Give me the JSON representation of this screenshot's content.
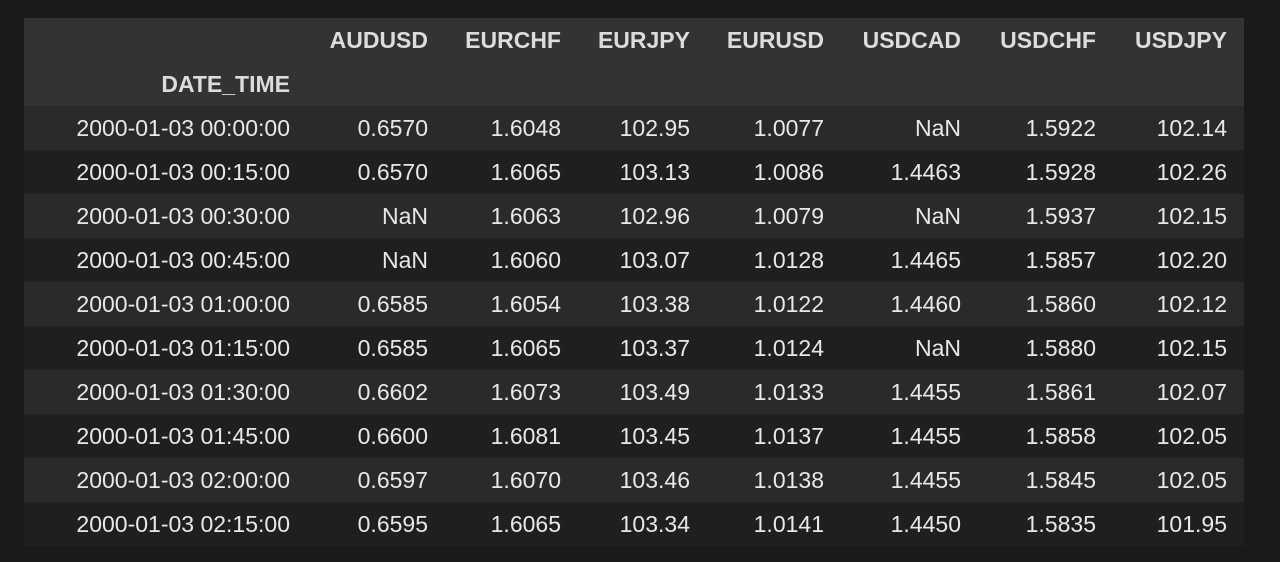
{
  "table": {
    "index_name": "DATE_TIME",
    "columns": [
      "AUDUSD",
      "EURCHF",
      "EURJPY",
      "EURUSD",
      "USDCAD",
      "USDCHF",
      "USDJPY"
    ],
    "rows": [
      {
        "index": "2000-01-03 00:00:00",
        "values": [
          "0.6570",
          "1.6048",
          "102.95",
          "1.0077",
          "NaN",
          "1.5922",
          "102.14"
        ]
      },
      {
        "index": "2000-01-03 00:15:00",
        "values": [
          "0.6570",
          "1.6065",
          "103.13",
          "1.0086",
          "1.4463",
          "1.5928",
          "102.26"
        ]
      },
      {
        "index": "2000-01-03 00:30:00",
        "values": [
          "NaN",
          "1.6063",
          "102.96",
          "1.0079",
          "NaN",
          "1.5937",
          "102.15"
        ]
      },
      {
        "index": "2000-01-03 00:45:00",
        "values": [
          "NaN",
          "1.6060",
          "103.07",
          "1.0128",
          "1.4465",
          "1.5857",
          "102.20"
        ]
      },
      {
        "index": "2000-01-03 01:00:00",
        "values": [
          "0.6585",
          "1.6054",
          "103.38",
          "1.0122",
          "1.4460",
          "1.5860",
          "102.12"
        ]
      },
      {
        "index": "2000-01-03 01:15:00",
        "values": [
          "0.6585",
          "1.6065",
          "103.37",
          "1.0124",
          "NaN",
          "1.5880",
          "102.15"
        ]
      },
      {
        "index": "2000-01-03 01:30:00",
        "values": [
          "0.6602",
          "1.6073",
          "103.49",
          "1.0133",
          "1.4455",
          "1.5861",
          "102.07"
        ]
      },
      {
        "index": "2000-01-03 01:45:00",
        "values": [
          "0.6600",
          "1.6081",
          "103.45",
          "1.0137",
          "1.4455",
          "1.5858",
          "102.05"
        ]
      },
      {
        "index": "2000-01-03 02:00:00",
        "values": [
          "0.6597",
          "1.6070",
          "103.46",
          "1.0138",
          "1.4455",
          "1.5845",
          "102.05"
        ]
      },
      {
        "index": "2000-01-03 02:15:00",
        "values": [
          "0.6595",
          "1.6065",
          "103.34",
          "1.0141",
          "1.4450",
          "1.5835",
          "101.95"
        ]
      }
    ]
  }
}
